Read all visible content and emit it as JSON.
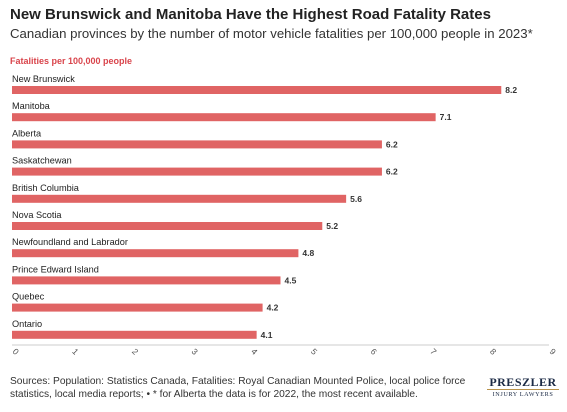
{
  "title": "New Brunswick and Manitoba Have the Highest Road Fatality Rates",
  "subtitle": "Canadian provinces by the number of motor vehicle fatalities per 100,000 people in 2023*",
  "sources": "Sources: Population: Statistics Canada, Fatalities: Royal Canadian Mounted Police, local police force statistics, local media reports; • * for Alberta the data is for 2022, the most recent available.",
  "logo": {
    "name": "PRESZLER",
    "tagline": "INJURY LAWYERS"
  },
  "colors": {
    "bar": "#e06464",
    "accent": "#d9444b",
    "grid": "#cccccc"
  },
  "chart_data": {
    "type": "bar",
    "orientation": "horizontal",
    "value_label": "Fatalities per 100,000 people",
    "categories": [
      "New Brunswick",
      "Manitoba",
      "Alberta",
      "Saskatchewan",
      "British Columbia",
      "Nova Scotia",
      "Newfoundland and Labrador",
      "Prince Edward Island",
      "Quebec",
      "Ontario"
    ],
    "values": [
      8.2,
      7.1,
      6.2,
      6.2,
      5.6,
      5.2,
      4.8,
      4.5,
      4.2,
      4.1
    ],
    "value_labels": [
      "8.2",
      "7.1",
      "6.2",
      "6.2",
      "5.6",
      "5.2",
      "4.8",
      "4.5",
      "4.2",
      "4.1"
    ],
    "xlim": [
      0,
      9
    ],
    "xticks": [
      "0",
      "1",
      "2",
      "3",
      "4",
      "5",
      "6",
      "7",
      "8",
      "9"
    ],
    "grid": false,
    "legend": "none"
  }
}
